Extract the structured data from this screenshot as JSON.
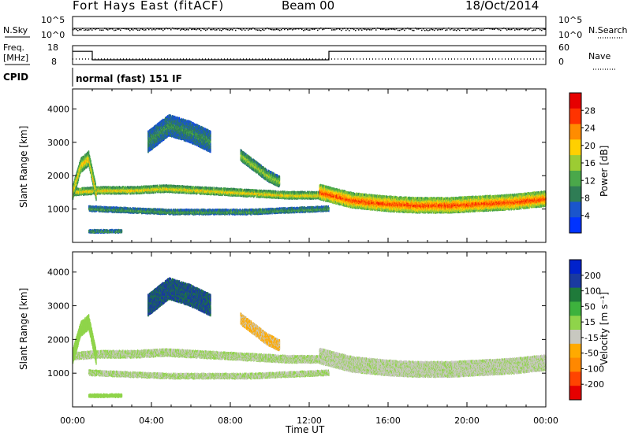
{
  "header": {
    "station": "Fort Hays East (fitACF)",
    "beam": "Beam 00",
    "date": "18/Oct/2014"
  },
  "labels": {
    "nsky": "N.Sky",
    "nsearch": "N.Search",
    "freq_line1": "Freq.",
    "freq_line2": "[MHz]",
    "nave": "Nave",
    "cpid": "CPID",
    "cpid_value": "normal (fast) 151 IF",
    "xlabel": "Time UT"
  },
  "noise_panel": {
    "left_ticks": [
      "10^5",
      "10^0"
    ],
    "right_ticks": [
      "10^5",
      "10^0"
    ]
  },
  "freq_panel": {
    "left_ticks": [
      18,
      8
    ],
    "right_ticks": [
      60,
      0
    ],
    "freq_mhz_segments": [
      {
        "t0": 0.0,
        "t1": 1.0,
        "value": 15
      },
      {
        "t0": 1.0,
        "t1": 13.0,
        "value": 10.5
      },
      {
        "t0": 13.0,
        "t1": 24.0,
        "value": 15
      }
    ],
    "nave_level": 5
  },
  "power_panel": {
    "ylabel": "Slant Range [km]",
    "colorbar_label": "Power [dB]",
    "colorbar_ticks": [
      28,
      24,
      20,
      16,
      12,
      8,
      4
    ]
  },
  "velocity_panel": {
    "ylabel": "Slant Range [km]",
    "colorbar_label": "Velocity [m s⁻¹]",
    "colorbar_ticks": [
      200,
      100,
      50,
      15,
      -15,
      -50,
      -100,
      -200
    ]
  },
  "colors": {
    "power_scale": [
      "#0033ff",
      "#1a55cc",
      "#2f7d55",
      "#4aa84a",
      "#9ccc33",
      "#ffd000",
      "#ff8c00",
      "#ff3300",
      "#e60000"
    ],
    "velocity_scale": [
      "#e60000",
      "#ff4400",
      "#ff8800",
      "#ffaa00",
      "#c8c8c0",
      "#8fd44a",
      "#3db23d",
      "#1f7a3a",
      "#1a3aa0",
      "#0022cc"
    ]
  },
  "chart_data": {
    "type": "heatmap",
    "x_range_hours": [
      0,
      24
    ],
    "x_ticks": [
      "00:00",
      "04:00",
      "08:00",
      "12:00",
      "16:00",
      "20:00",
      "00:00"
    ],
    "x_tick_hours": [
      0,
      4,
      8,
      12,
      16,
      20,
      24
    ],
    "y_range_km": [
      0,
      4600
    ],
    "y_ticks": [
      1000,
      2000,
      3000,
      4000
    ],
    "power_db_range": [
      0,
      30
    ],
    "velocity_range": [
      -250,
      250
    ],
    "echo_bands": [
      {
        "name": "main",
        "t0": 0.0,
        "t1": 12.5,
        "r_center_km": [
          1500,
          1550,
          1550,
          1600,
          1550,
          1500,
          1450,
          1400,
          1400
        ],
        "width_km": 180,
        "power_db": 18,
        "velocity": 0
      },
      {
        "name": "ionospheric",
        "t0": 12.5,
        "t1": 24.0,
        "r_center_km": [
          1500,
          1250,
          1150,
          1100,
          1100,
          1150,
          1200,
          1300
        ],
        "width_km": 420,
        "power_db": 24,
        "velocity": -5
      },
      {
        "name": "early",
        "t0": 0.0,
        "t1": 1.2,
        "r_center_km": [
          1500,
          2300,
          2500,
          1400
        ],
        "width_km": 400,
        "power_db": 18,
        "velocity": 40
      },
      {
        "name": "ground",
        "t0": 0.8,
        "t1": 13.0,
        "r_center_km": [
          1000,
          900,
          900,
          1000
        ],
        "width_km": 120,
        "power_db": 10,
        "velocity": 0
      },
      {
        "name": "upper",
        "t0": 3.8,
        "t1": 7.0,
        "r_center_km": [
          3000,
          3500,
          3300,
          3000
        ],
        "width_km": 600,
        "power_db": 8,
        "velocity": 170
      },
      {
        "name": "evening",
        "t0": 8.5,
        "t1": 10.5,
        "r_center_km": [
          2600,
          2300,
          2000,
          1800
        ],
        "width_km": 300,
        "power_db": 14,
        "velocity": -60
      },
      {
        "name": "near",
        "t0": 0.8,
        "t1": 2.5,
        "r_center_km": [
          320,
          320
        ],
        "width_km": 60,
        "power_db": 10,
        "velocity": 40
      }
    ]
  }
}
